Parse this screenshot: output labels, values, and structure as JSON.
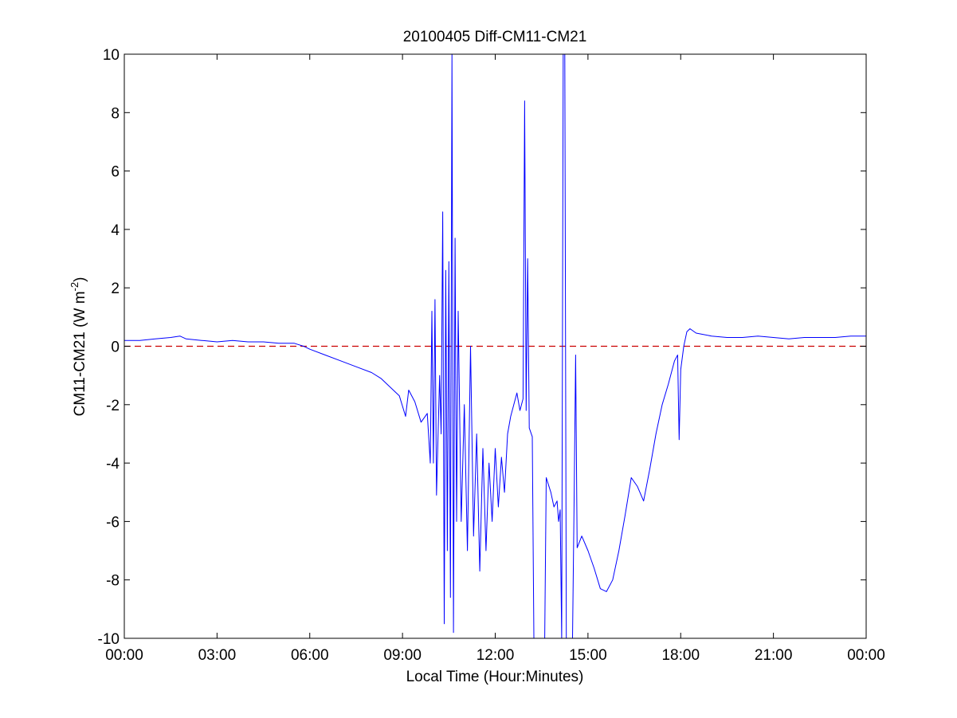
{
  "figure": {
    "title": "20100405 Diff-CM11-CM21",
    "ylabel_main": "CM11-CM21 (W m",
    "ylabel_sup": "-2",
    "ylabel_close": ")",
    "xlabel": "Local Time (Hour:Minutes)"
  },
  "colors": {
    "series": "#0000ff",
    "zero_line": "#cc0000",
    "axes": "#000000",
    "background": "#ffffff"
  },
  "chart_data": {
    "type": "line",
    "title": "20100405 Diff-CM11-CM21",
    "xlabel": "Local Time (Hour:Minutes)",
    "ylabel": "CM11-CM21 (W m-2)",
    "x_unit": "hours of day",
    "xlim": [
      0,
      24
    ],
    "ylim": [
      -10,
      10
    ],
    "x_ticks": [
      0,
      3,
      6,
      9,
      12,
      15,
      18,
      21,
      24
    ],
    "x_tick_labels": [
      "00:00",
      "03:00",
      "06:00",
      "09:00",
      "12:00",
      "15:00",
      "18:00",
      "21:00",
      "00:00"
    ],
    "y_ticks": [
      10,
      8,
      6,
      4,
      2,
      0,
      -2,
      -4,
      -6,
      -8,
      -10
    ],
    "y_tick_labels": [
      "10",
      "8",
      "6",
      "4",
      "2",
      "0",
      "-2",
      "-4",
      "-6",
      "-8",
      "-10"
    ],
    "grid": false,
    "reference_line": {
      "y": 0,
      "style": "dashed"
    },
    "series": [
      {
        "points": [
          [
            0.0,
            0.2
          ],
          [
            0.5,
            0.2
          ],
          [
            1.0,
            0.25
          ],
          [
            1.5,
            0.3
          ],
          [
            1.8,
            0.35
          ],
          [
            2.0,
            0.25
          ],
          [
            2.5,
            0.2
          ],
          [
            3.0,
            0.15
          ],
          [
            3.5,
            0.2
          ],
          [
            4.0,
            0.15
          ],
          [
            4.5,
            0.15
          ],
          [
            5.0,
            0.1
          ],
          [
            5.5,
            0.1
          ],
          [
            5.8,
            0.0
          ],
          [
            6.0,
            -0.1
          ],
          [
            6.5,
            -0.3
          ],
          [
            7.0,
            -0.5
          ],
          [
            7.5,
            -0.7
          ],
          [
            8.0,
            -0.9
          ],
          [
            8.3,
            -1.1
          ],
          [
            8.6,
            -1.4
          ],
          [
            8.9,
            -1.7
          ],
          [
            9.1,
            -2.4
          ],
          [
            9.2,
            -1.5
          ],
          [
            9.4,
            -1.9
          ],
          [
            9.6,
            -2.6
          ],
          [
            9.8,
            -2.3
          ],
          [
            9.9,
            -4.0
          ],
          [
            9.95,
            1.2
          ],
          [
            10.0,
            -4.0
          ],
          [
            10.05,
            1.6
          ],
          [
            10.1,
            -5.1
          ],
          [
            10.2,
            -1.0
          ],
          [
            10.25,
            -3.0
          ],
          [
            10.3,
            4.6
          ],
          [
            10.35,
            -9.5
          ],
          [
            10.4,
            2.6
          ],
          [
            10.45,
            -7.0
          ],
          [
            10.5,
            2.9
          ],
          [
            10.55,
            -8.6
          ],
          [
            10.6,
            10.0
          ],
          [
            10.65,
            -9.8
          ],
          [
            10.7,
            3.7
          ],
          [
            10.75,
            -6.0
          ],
          [
            10.8,
            1.2
          ],
          [
            10.9,
            -6.0
          ],
          [
            11.0,
            -2.0
          ],
          [
            11.1,
            -7.0
          ],
          [
            11.2,
            0.0
          ],
          [
            11.3,
            -6.5
          ],
          [
            11.4,
            -3.0
          ],
          [
            11.5,
            -7.7
          ],
          [
            11.6,
            -3.5
          ],
          [
            11.7,
            -7.0
          ],
          [
            11.8,
            -4.0
          ],
          [
            11.9,
            -6.0
          ],
          [
            12.0,
            -3.5
          ],
          [
            12.1,
            -5.5
          ],
          [
            12.2,
            -3.8
          ],
          [
            12.3,
            -5.0
          ],
          [
            12.4,
            -3.0
          ],
          [
            12.5,
            -2.4
          ],
          [
            12.6,
            -2.0
          ],
          [
            12.7,
            -1.6
          ],
          [
            12.8,
            -2.2
          ],
          [
            12.9,
            -1.8
          ],
          [
            12.95,
            8.4
          ],
          [
            13.0,
            -2.2
          ],
          [
            13.05,
            3.0
          ],
          [
            13.1,
            -2.8
          ],
          [
            13.2,
            -3.1
          ],
          [
            13.25,
            -10.0
          ],
          [
            13.6,
            -10.0
          ],
          [
            13.65,
            -4.5
          ],
          [
            13.8,
            -5.0
          ],
          [
            13.9,
            -5.5
          ],
          [
            14.0,
            -5.3
          ],
          [
            14.05,
            -6.0
          ],
          [
            14.1,
            -5.6
          ],
          [
            14.15,
            -10.0
          ],
          [
            14.2,
            10.0
          ],
          [
            14.25,
            10.0
          ],
          [
            14.3,
            -10.0
          ],
          [
            14.4,
            -10.0
          ],
          [
            14.5,
            -10.0
          ],
          [
            14.55,
            -5.5
          ],
          [
            14.6,
            -0.3
          ],
          [
            14.65,
            -6.9
          ],
          [
            14.8,
            -6.5
          ],
          [
            15.0,
            -7.0
          ],
          [
            15.2,
            -7.6
          ],
          [
            15.4,
            -8.3
          ],
          [
            15.6,
            -8.4
          ],
          [
            15.8,
            -8.0
          ],
          [
            16.0,
            -7.0
          ],
          [
            16.2,
            -5.8
          ],
          [
            16.4,
            -4.5
          ],
          [
            16.6,
            -4.8
          ],
          [
            16.8,
            -5.3
          ],
          [
            17.0,
            -4.2
          ],
          [
            17.2,
            -3.0
          ],
          [
            17.4,
            -2.0
          ],
          [
            17.6,
            -1.3
          ],
          [
            17.8,
            -0.5
          ],
          [
            17.9,
            -0.3
          ],
          [
            17.95,
            -3.2
          ],
          [
            18.0,
            -0.8
          ],
          [
            18.1,
            0.0
          ],
          [
            18.2,
            0.5
          ],
          [
            18.3,
            0.6
          ],
          [
            18.5,
            0.45
          ],
          [
            19.0,
            0.35
          ],
          [
            19.5,
            0.3
          ],
          [
            20.0,
            0.3
          ],
          [
            20.5,
            0.35
          ],
          [
            21.0,
            0.3
          ],
          [
            21.5,
            0.25
          ],
          [
            22.0,
            0.3
          ],
          [
            22.5,
            0.3
          ],
          [
            23.0,
            0.3
          ],
          [
            23.5,
            0.35
          ],
          [
            24.0,
            0.35
          ]
        ]
      }
    ]
  }
}
